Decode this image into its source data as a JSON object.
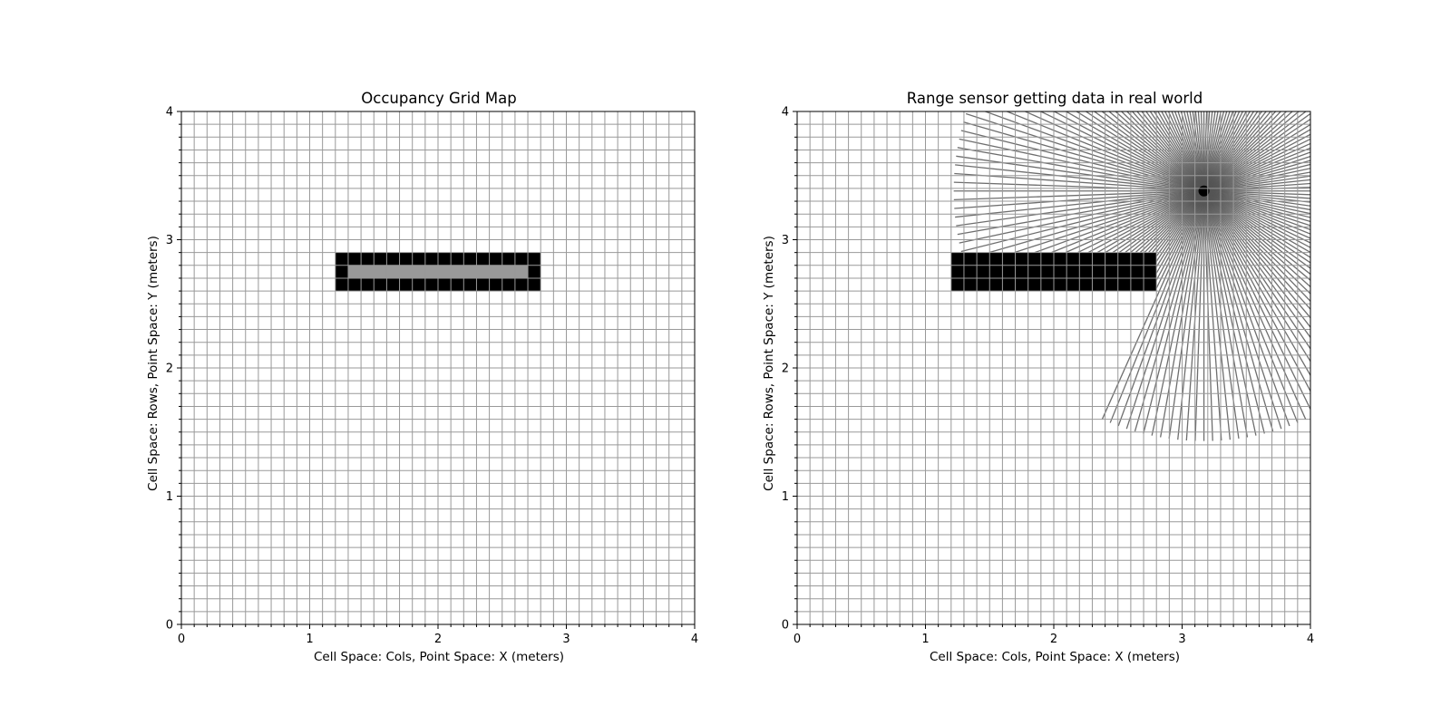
{
  "chart_data": [
    {
      "type": "heatmap",
      "title": "Occupancy Grid Map",
      "xlabel": "Cell Space: Cols, Point Space: X (meters)",
      "ylabel": "Cell Space: Rows, Point Space: Y (meters)",
      "xlim": [
        0,
        4
      ],
      "ylim": [
        0,
        4
      ],
      "xticks": [
        "0",
        "1",
        "2",
        "3",
        "4"
      ],
      "yticks": [
        "0",
        "1",
        "2",
        "3",
        "4"
      ],
      "grid": true,
      "cell_size_m": 0.1,
      "occupied_region": {
        "x": [
          1.2,
          2.8
        ],
        "y": [
          2.6,
          2.9
        ],
        "color": "#000000"
      },
      "interior_region": {
        "x": [
          1.3,
          2.7
        ],
        "y": [
          2.7,
          2.8
        ],
        "color": "#999999"
      },
      "grid_color": "#999999"
    },
    {
      "type": "line",
      "title": "Range sensor getting data in real world",
      "xlabel": "Cell Space: Cols, Point Space: X (meters)",
      "ylabel": "Cell Space: Rows, Point Space: Y (meters)",
      "xlim": [
        0,
        4
      ],
      "ylim": [
        0,
        4
      ],
      "xticks": [
        "0",
        "1",
        "2",
        "3",
        "4"
      ],
      "yticks": [
        "0",
        "1",
        "2",
        "3",
        "4"
      ],
      "grid": true,
      "cell_size_m": 0.1,
      "obstacle": {
        "x": [
          1.2,
          2.8
        ],
        "y": [
          2.6,
          2.9
        ],
        "color": "#000000"
      },
      "sensor_origin": {
        "x": 3.17,
        "y": 3.38
      },
      "max_range_m": 1.95,
      "ray_count": 180,
      "ray_color": "#555555",
      "grid_color": "#999999"
    }
  ]
}
